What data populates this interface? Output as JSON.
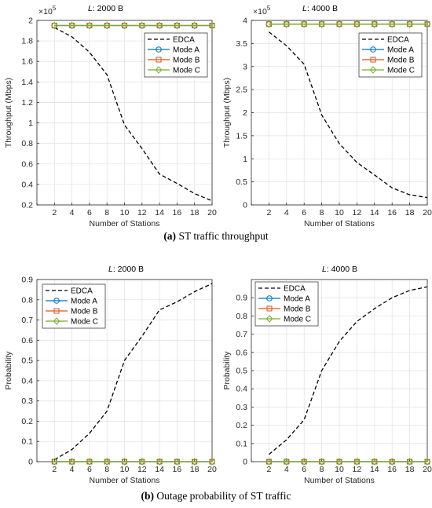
{
  "captions": {
    "a_letter": "(a)",
    "a_text": "ST traffic throughput",
    "b_letter": "(b)",
    "b_text": "Outage probability of ST traffic"
  },
  "colors": {
    "EDCA": "#000000",
    "Mode A": "#0072BD",
    "Mode B": "#D95319",
    "Mode C": "#77AC30",
    "grid": "#e3e3e3",
    "axes": "#262626"
  },
  "chart_data": [
    {
      "type": "line",
      "title_prefix": "L",
      "title_suffix": ": 2000 B",
      "xlabel": "Number of Stations",
      "ylabel": "Throughput (Mbps)",
      "exponent_label": "×10",
      "exponent": "5",
      "x": [
        2,
        4,
        6,
        8,
        10,
        12,
        14,
        16,
        18,
        20
      ],
      "xlim": [
        0,
        20
      ],
      "ylim": [
        0.2,
        2
      ],
      "yticks": [
        0.2,
        0.4,
        0.6,
        0.8,
        1,
        1.2,
        1.4,
        1.6,
        1.8,
        2
      ],
      "grid": true,
      "legend": "top-right",
      "series": [
        {
          "name": "EDCA",
          "style": "dashed",
          "marker": "none",
          "values": [
            1.93,
            1.84,
            1.69,
            1.47,
            0.98,
            0.75,
            0.5,
            0.41,
            0.31,
            0.24
          ]
        },
        {
          "name": "Mode A",
          "style": "solid",
          "marker": "circle",
          "values": [
            1.95,
            1.95,
            1.95,
            1.95,
            1.95,
            1.95,
            1.95,
            1.95,
            1.95,
            1.95
          ]
        },
        {
          "name": "Mode B",
          "style": "solid",
          "marker": "square",
          "values": [
            1.95,
            1.95,
            1.95,
            1.95,
            1.95,
            1.95,
            1.95,
            1.95,
            1.95,
            1.95
          ]
        },
        {
          "name": "Mode C",
          "style": "solid",
          "marker": "diamond",
          "values": [
            1.95,
            1.95,
            1.95,
            1.95,
            1.95,
            1.95,
            1.95,
            1.95,
            1.95,
            1.95
          ]
        }
      ]
    },
    {
      "type": "line",
      "title_prefix": "L",
      "title_suffix": ": 4000 B",
      "xlabel": "Number of Stations",
      "ylabel": "Throughput (Mbps)",
      "exponent_label": "×10",
      "exponent": "5",
      "x": [
        2,
        4,
        6,
        8,
        10,
        12,
        14,
        16,
        18,
        20
      ],
      "xlim": [
        0,
        20
      ],
      "ylim": [
        0,
        4
      ],
      "yticks": [
        0,
        0.5,
        1,
        1.5,
        2,
        2.5,
        3,
        3.5,
        4
      ],
      "grid": true,
      "legend": "top-right",
      "series": [
        {
          "name": "EDCA",
          "style": "dashed",
          "marker": "none",
          "values": [
            3.75,
            3.45,
            3.05,
            1.95,
            1.33,
            0.92,
            0.65,
            0.37,
            0.22,
            0.16
          ]
        },
        {
          "name": "Mode A",
          "style": "solid",
          "marker": "circle",
          "values": [
            3.92,
            3.92,
            3.92,
            3.92,
            3.92,
            3.92,
            3.92,
            3.92,
            3.92,
            3.92
          ]
        },
        {
          "name": "Mode B",
          "style": "solid",
          "marker": "square",
          "values": [
            3.92,
            3.92,
            3.92,
            3.92,
            3.92,
            3.92,
            3.92,
            3.92,
            3.92,
            3.92
          ]
        },
        {
          "name": "Mode C",
          "style": "solid",
          "marker": "diamond",
          "values": [
            3.92,
            3.92,
            3.92,
            3.92,
            3.92,
            3.92,
            3.92,
            3.92,
            3.92,
            3.92
          ]
        }
      ]
    },
    {
      "type": "line",
      "title_prefix": "L",
      "title_suffix": ": 2000 B",
      "xlabel": "Number of Stations",
      "ylabel": "Probability",
      "exponent_label": "",
      "exponent": "",
      "x": [
        2,
        4,
        6,
        8,
        10,
        12,
        14,
        16,
        18,
        20
      ],
      "xlim": [
        0,
        20
      ],
      "ylim": [
        0,
        0.9
      ],
      "yticks": [
        0,
        0.1,
        0.2,
        0.3,
        0.4,
        0.5,
        0.6,
        0.7,
        0.8,
        0.9
      ],
      "grid": true,
      "legend": "top-left",
      "series": [
        {
          "name": "EDCA",
          "style": "dashed",
          "marker": "none",
          "values": [
            0.01,
            0.06,
            0.14,
            0.25,
            0.5,
            0.62,
            0.75,
            0.79,
            0.84,
            0.88
          ]
        },
        {
          "name": "Mode A",
          "style": "solid",
          "marker": "circle",
          "values": [
            0,
            0,
            0,
            0,
            0,
            0,
            0,
            0,
            0,
            0
          ]
        },
        {
          "name": "Mode B",
          "style": "solid",
          "marker": "square",
          "values": [
            0,
            0,
            0,
            0,
            0,
            0,
            0,
            0,
            0,
            0
          ]
        },
        {
          "name": "Mode C",
          "style": "solid",
          "marker": "diamond",
          "values": [
            0,
            0,
            0,
            0,
            0,
            0,
            0,
            0,
            0,
            0
          ]
        }
      ]
    },
    {
      "type": "line",
      "title_prefix": "L",
      "title_suffix": ": 4000 B",
      "xlabel": "Number of Stations",
      "ylabel": "Probability",
      "exponent_label": "",
      "exponent": "",
      "x": [
        2,
        4,
        6,
        8,
        10,
        12,
        14,
        16,
        18,
        20
      ],
      "xlim": [
        0,
        20
      ],
      "ylim": [
        0,
        1
      ],
      "yticks": [
        0,
        0.1,
        0.2,
        0.3,
        0.4,
        0.5,
        0.6,
        0.7,
        0.8,
        0.9
      ],
      "grid": true,
      "legend": "top-left",
      "series": [
        {
          "name": "EDCA",
          "style": "dashed",
          "marker": "none",
          "values": [
            0.04,
            0.12,
            0.23,
            0.5,
            0.66,
            0.77,
            0.84,
            0.9,
            0.94,
            0.96
          ]
        },
        {
          "name": "Mode A",
          "style": "solid",
          "marker": "circle",
          "values": [
            0,
            0,
            0,
            0,
            0,
            0,
            0,
            0,
            0,
            0
          ]
        },
        {
          "name": "Mode B",
          "style": "solid",
          "marker": "square",
          "values": [
            0,
            0,
            0,
            0,
            0,
            0,
            0,
            0,
            0,
            0
          ]
        },
        {
          "name": "Mode C",
          "style": "solid",
          "marker": "diamond",
          "values": [
            0,
            0,
            0,
            0,
            0,
            0,
            0,
            0,
            0,
            0
          ]
        }
      ]
    }
  ]
}
